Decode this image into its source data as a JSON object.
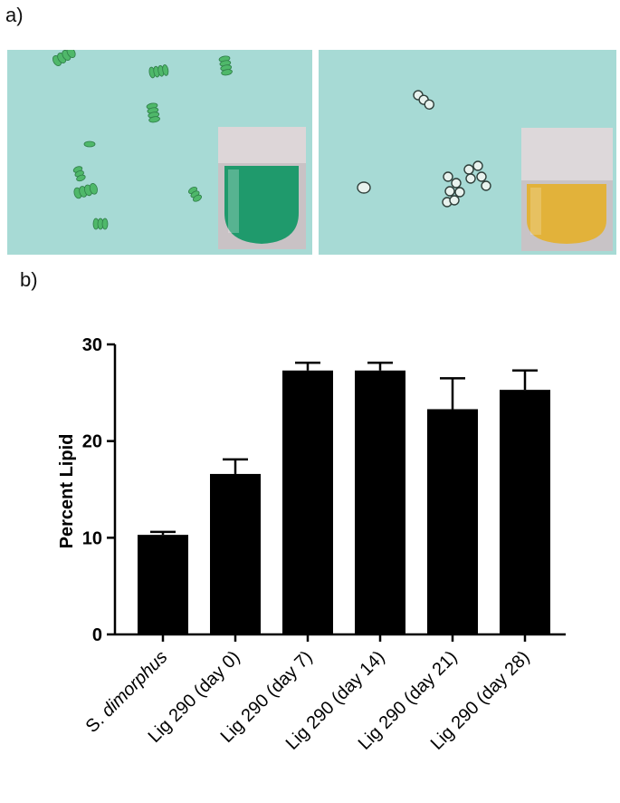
{
  "panels": {
    "a_label": "a)",
    "b_label": "b)"
  },
  "photos": {
    "left": {
      "culture_color": "#1f9a6c",
      "cell_color": "#4fb86a"
    },
    "right": {
      "culture_color": "#e2b23a",
      "cell_color": "#e8f2ee"
    }
  },
  "chart_data": {
    "type": "bar",
    "categories": [
      "S. dimorphus",
      "Lig 290 (day 0)",
      "Lig 290 (day 7)",
      "Lig 290 (day 14)",
      "Lig 290 (day 21)",
      "Lig 290 (day 28)"
    ],
    "values": [
      10.3,
      16.6,
      27.3,
      27.3,
      23.3,
      25.3
    ],
    "errors": [
      0.3,
      1.5,
      0.8,
      0.8,
      3.2,
      2.0
    ],
    "ylabel": "Percent Lipid",
    "ylim": [
      0,
      30
    ],
    "yticks": [
      0,
      10,
      20,
      30
    ],
    "bar_color": "#000000",
    "grid": false
  }
}
